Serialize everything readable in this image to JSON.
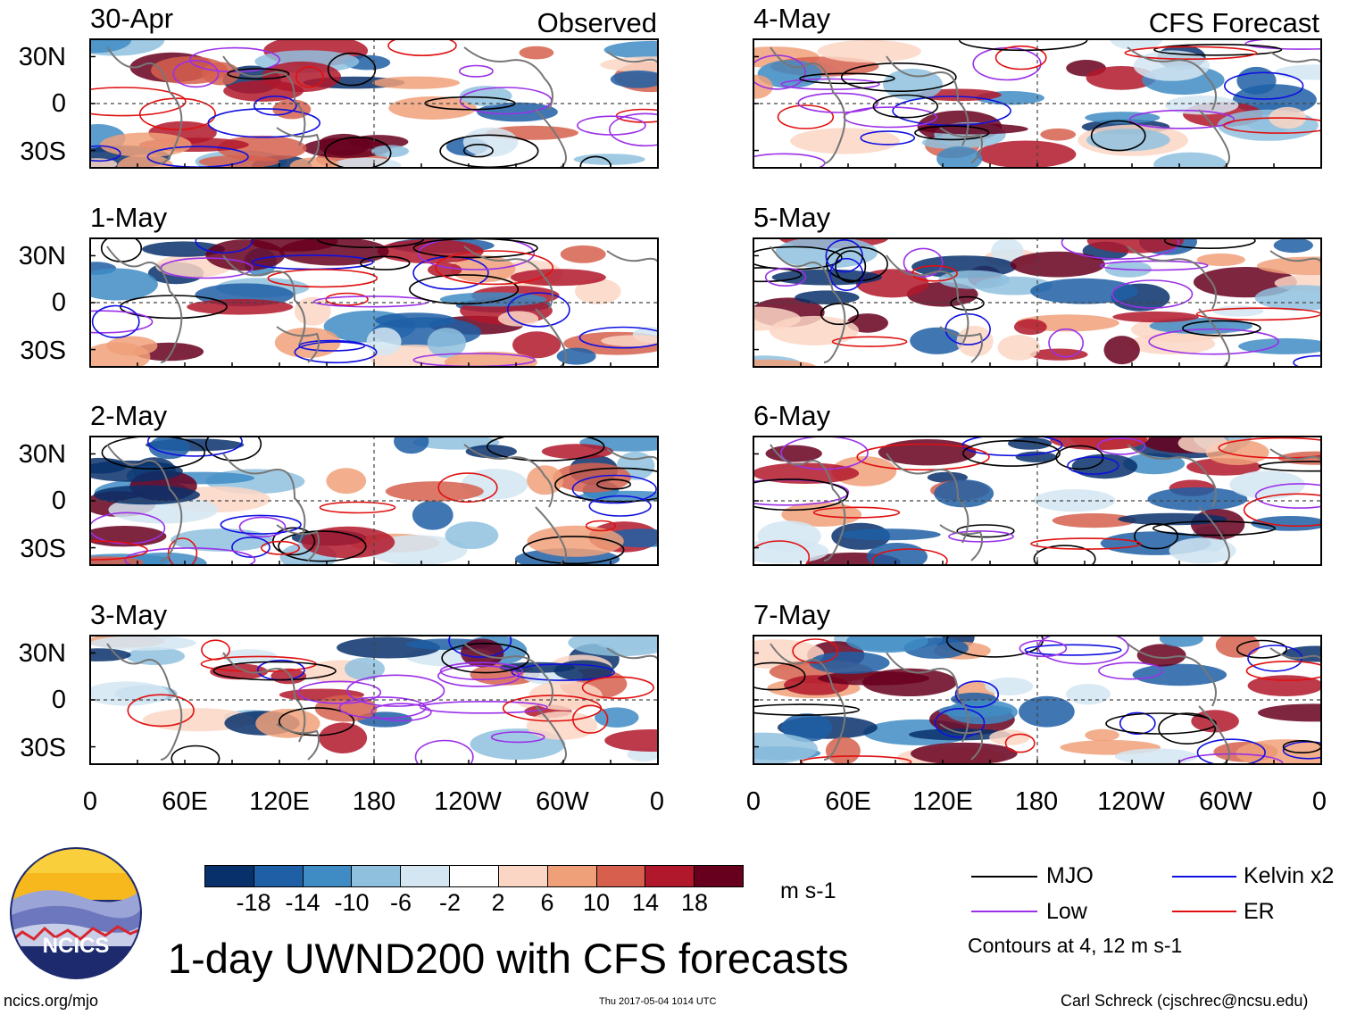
{
  "observed_label": "Observed",
  "forecast_label": "CFS Forecast",
  "panels": [
    {
      "date": "30-Apr",
      "kind": "observed"
    },
    {
      "date": "1-May",
      "kind": "observed"
    },
    {
      "date": "2-May",
      "kind": "observed"
    },
    {
      "date": "3-May",
      "kind": "observed"
    },
    {
      "date": "4-May",
      "kind": "forecast"
    },
    {
      "date": "5-May",
      "kind": "forecast"
    },
    {
      "date": "6-May",
      "kind": "forecast"
    },
    {
      "date": "7-May",
      "kind": "forecast"
    }
  ],
  "lat_labels": [
    "30N",
    "0",
    "30S"
  ],
  "lon_labels": [
    "0",
    "60E",
    "120E",
    "180",
    "120W",
    "60W",
    "0"
  ],
  "colorbar": {
    "colors": [
      "#08306b",
      "#1f5fa6",
      "#3f8cc4",
      "#8fc1de",
      "#d4e6f2",
      "#ffffff",
      "#fbd6c4",
      "#f0a079",
      "#d6604d",
      "#b2182b",
      "#67001f"
    ],
    "ticks": [
      "-18",
      "-14",
      "-10",
      "-6",
      "-2",
      "2",
      "6",
      "10",
      "14",
      "18"
    ],
    "units": "m s-1"
  },
  "title": "1-day UWND200 with CFS forecasts",
  "legend": [
    {
      "label": "MJO",
      "color": "#000000"
    },
    {
      "label": "Kelvin x2",
      "color": "#1010e0"
    },
    {
      "label": "Low",
      "color": "#9b30e8"
    },
    {
      "label": "ER",
      "color": "#e01010"
    }
  ],
  "contour_note": "Contours at 4, 12 m s-1",
  "logo_text": "NCICS",
  "footer": {
    "url": "ncics.org/mjo",
    "timestamp": "Thu 2017-05-04 1014 UTC",
    "author": "Carl Schreck (cjschrec@ncsu.edu)"
  }
}
